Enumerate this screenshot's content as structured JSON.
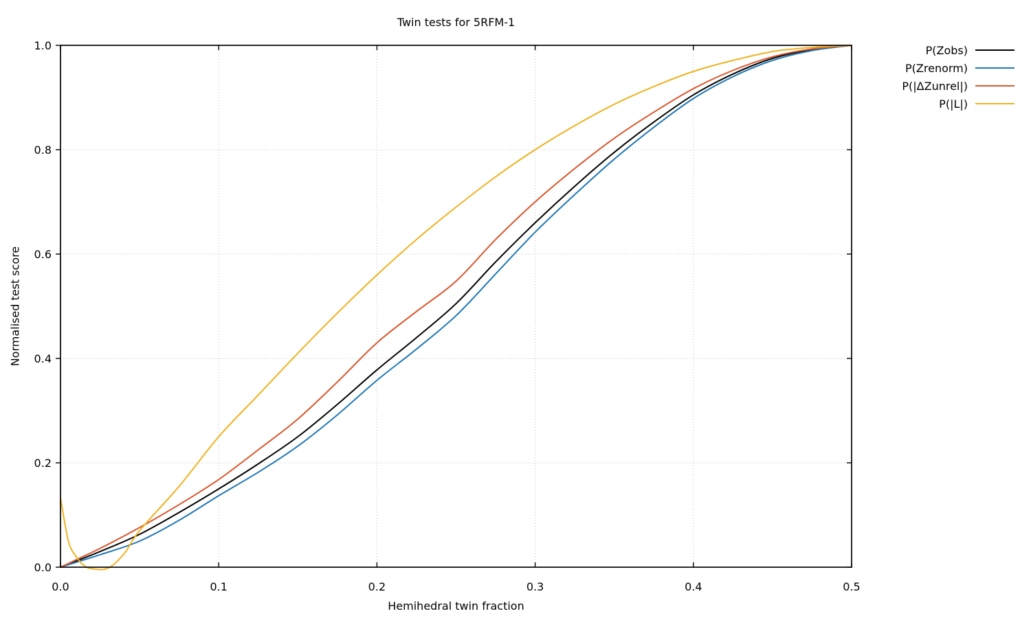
{
  "chart_data": {
    "type": "line",
    "title": "Twin tests for 5RFM-1",
    "xlabel": "Hemihedral twin fraction",
    "ylabel": "Normalised test score",
    "xlim": [
      0.0,
      0.5
    ],
    "ylim": [
      0.0,
      1.0
    ],
    "xtick_labels": [
      "0.0",
      "0.1",
      "0.2",
      "0.3",
      "0.4",
      "0.5"
    ],
    "ytick_labels": [
      "0.0",
      "0.2",
      "0.4",
      "0.6",
      "0.8",
      "1.0"
    ],
    "grid": "dotted",
    "legend_position": "outside-top-right",
    "series": [
      {
        "name": "P(Zobs)",
        "color": "#000000",
        "x": [
          0,
          0.025,
          0.05,
          0.075,
          0.1,
          0.125,
          0.15,
          0.175,
          0.2,
          0.225,
          0.25,
          0.275,
          0.3,
          0.325,
          0.35,
          0.375,
          0.4,
          0.425,
          0.45,
          0.475,
          0.5
        ],
        "y": [
          0,
          0.03,
          0.063,
          0.105,
          0.15,
          0.198,
          0.25,
          0.312,
          0.378,
          0.44,
          0.505,
          0.585,
          0.66,
          0.73,
          0.795,
          0.853,
          0.905,
          0.945,
          0.975,
          0.992,
          1.0
        ]
      },
      {
        "name": "P(Zrenorm)",
        "color": "#1f77b4",
        "x": [
          0,
          0.025,
          0.05,
          0.075,
          0.1,
          0.125,
          0.15,
          0.175,
          0.2,
          0.225,
          0.25,
          0.275,
          0.3,
          0.325,
          0.35,
          0.375,
          0.4,
          0.425,
          0.45,
          0.475,
          0.5
        ],
        "y": [
          0,
          0.024,
          0.05,
          0.09,
          0.137,
          0.182,
          0.232,
          0.292,
          0.358,
          0.418,
          0.482,
          0.562,
          0.642,
          0.714,
          0.782,
          0.843,
          0.898,
          0.94,
          0.971,
          0.99,
          1.0
        ]
      },
      {
        "name": "P(|ΔZunrel|)",
        "color": "#d9562b",
        "x": [
          0,
          0.025,
          0.05,
          0.075,
          0.1,
          0.125,
          0.15,
          0.175,
          0.2,
          0.225,
          0.25,
          0.275,
          0.3,
          0.325,
          0.35,
          0.375,
          0.4,
          0.425,
          0.45,
          0.475,
          0.5
        ],
        "y": [
          0,
          0.036,
          0.076,
          0.12,
          0.168,
          0.225,
          0.284,
          0.355,
          0.43,
          0.49,
          0.548,
          0.628,
          0.7,
          0.764,
          0.822,
          0.872,
          0.917,
          0.952,
          0.978,
          0.993,
          1.0
        ]
      },
      {
        "name": "P(|L|)",
        "color": "#efb21e",
        "x": [
          0,
          0.005,
          0.01,
          0.015,
          0.02,
          0.03,
          0.04,
          0.05,
          0.075,
          0.1,
          0.125,
          0.15,
          0.175,
          0.2,
          0.225,
          0.25,
          0.275,
          0.3,
          0.325,
          0.35,
          0.375,
          0.4,
          0.425,
          0.45,
          0.475,
          0.5
        ],
        "y": [
          0.133,
          0.05,
          0.02,
          0.003,
          -0.003,
          -0.002,
          0.025,
          0.07,
          0.155,
          0.25,
          0.33,
          0.41,
          0.487,
          0.56,
          0.628,
          0.69,
          0.748,
          0.8,
          0.846,
          0.887,
          0.921,
          0.95,
          0.971,
          0.988,
          0.996,
          1.0
        ]
      }
    ]
  }
}
